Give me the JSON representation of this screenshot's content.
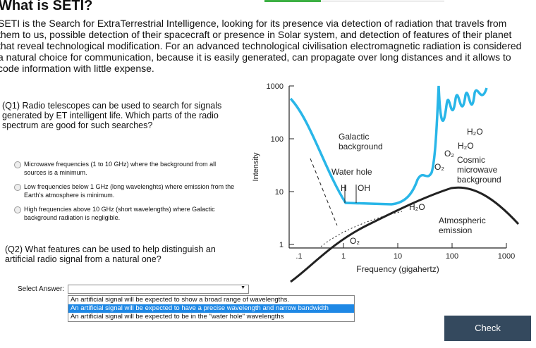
{
  "page": {
    "title": "What is SETI?",
    "intro": "SETI is the Search for ExtraTerrestrial Intelligence, looking for its presence via detection of radiation that travels from them to us, possible detection of their spacecraft or presence in Solar system, and detection of features of their planet that reveal technological modification. For an advanced technological civilisation electromagnetic radiation is considered a natural choice for communication, because it is easily generated, can propagate over long distances and it allows to code information with little expense.",
    "questions": [
      {
        "label": "(Q1)  Radio telescopes can be used to search for signals generated by ET intelligent life. Which parts of the radio spectrum are good for such searches?",
        "options": [
          "Microwave frequencies (1 to 10 GHz) where the background from all sources is a minimum.",
          "Low frequencies below 1 GHz (long wavelenghts) where emission from the Earth's atmosphere is minimum.",
          "High frequencies above 10 GHz (short wavelengths) where Galactic background radiation is negligible."
        ]
      },
      {
        "label": "(Q2)  What features can be used to help distinguish an artificial radio signal from a natural one?",
        "select_label": "Select Answer:",
        "options": [
          "An artificial signal will be expected to show a broad range of wavelengths.",
          "An artificial signal will be expected to have a precise wavelength and narrow bandwidth",
          "An artificial signal will be expected to be in the \"water hole\" wavelengths"
        ]
      }
    ],
    "figure": {
      "y_axis_label": "Intensity",
      "x_axis_label": "Frequency (gigahertz)",
      "yticks": [
        "1000",
        "100",
        "10",
        "1"
      ],
      "xticks": [
        ".1",
        "1",
        "10",
        "100",
        "1000"
      ],
      "annotations": [
        [
          "Galactic",
          "background"
        ],
        [
          "Water hole"
        ],
        [
          "H"
        ],
        [
          "OH"
        ],
        [
          "H₂O"
        ],
        [
          "H₂O"
        ],
        [
          "O₂"
        ],
        [
          "O₂"
        ],
        [
          "Cosmic",
          "microwave",
          "background"
        ],
        [
          "H₂O"
        ],
        [
          "Atmospheric",
          "emission"
        ],
        [
          "O₂"
        ]
      ]
    },
    "button": "Check"
  }
}
